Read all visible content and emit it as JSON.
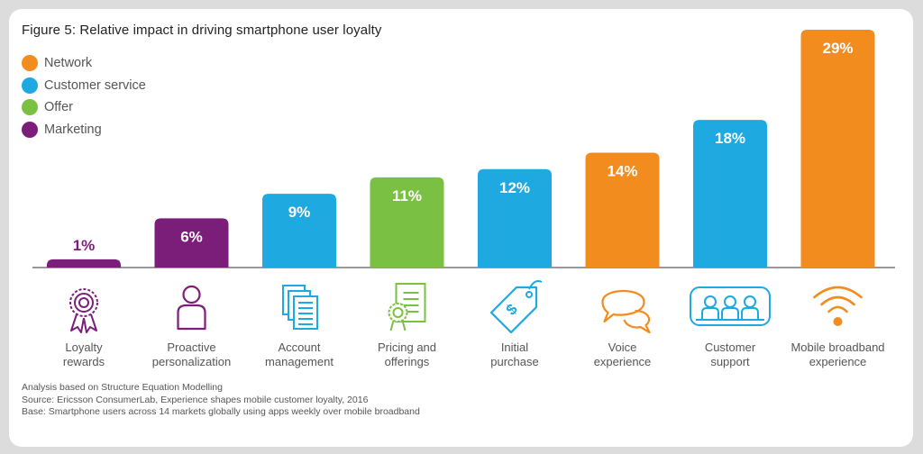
{
  "colors": {
    "network": "#f28c1e",
    "customer_service": "#1ea9e1",
    "offer": "#7ac143",
    "marketing": "#7b1e7a",
    "axis": "#999999"
  },
  "legend": [
    {
      "label": "Network",
      "group": "network"
    },
    {
      "label": "Customer service",
      "group": "customer_service"
    },
    {
      "label": "Offer",
      "group": "offer"
    },
    {
      "label": "Marketing",
      "group": "marketing"
    }
  ],
  "chart_data": {
    "type": "bar",
    "title": "Figure 5: Relative impact in driving smartphone user loyalty",
    "xlabel": "",
    "ylabel": "",
    "ylim": [
      0,
      29
    ],
    "grid": false,
    "legend_position": "top-left",
    "categories": [
      "Loyalty rewards",
      "Proactive personalization",
      "Account management",
      "Pricing and offerings",
      "Initial purchase",
      "Voice experience",
      "Customer support",
      "Mobile broadband experience"
    ],
    "category_lines": [
      [
        "Loyalty",
        "rewards"
      ],
      [
        "Proactive",
        "personalization"
      ],
      [
        "Account",
        "management"
      ],
      [
        "Pricing and",
        "offerings"
      ],
      [
        "Initial",
        "purchase"
      ],
      [
        "Voice",
        "experience"
      ],
      [
        "Customer",
        "support"
      ],
      [
        "Mobile broadband",
        "experience"
      ]
    ],
    "values": [
      1,
      6,
      9,
      11,
      12,
      14,
      18,
      29
    ],
    "value_labels": [
      "1%",
      "6%",
      "9%",
      "11%",
      "12%",
      "14%",
      "18%",
      "29%"
    ],
    "groups": [
      "marketing",
      "marketing",
      "customer_service",
      "offer",
      "customer_service",
      "network",
      "customer_service",
      "network"
    ],
    "icons": [
      "rosette-icon",
      "person-icon",
      "documents-icon",
      "certificate-icon",
      "price-tag-icon",
      "speech-bubbles-icon",
      "group-icon",
      "wifi-signal-icon"
    ]
  },
  "footnotes": [
    "Analysis based on Structure Equation Modelling",
    "Source: Ericsson ConsumerLab, Experience shapes mobile customer loyalty, 2016",
    "Base: Smartphone users across 14 markets globally using apps weekly over mobile broadband"
  ]
}
